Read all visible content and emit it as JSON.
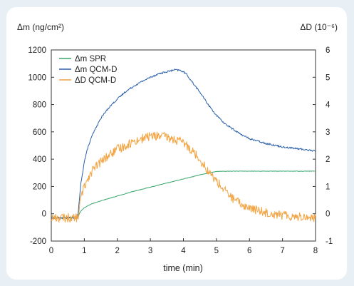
{
  "chart_data": {
    "type": "line",
    "title": "",
    "xlabel": "time (min)",
    "ylabel_left": "Δm (ng/cm²)",
    "ylabel_right": "ΔD (10⁻⁶)",
    "x_ticks": [
      "0",
      "1",
      "2",
      "3",
      "4",
      "5",
      "6",
      "7",
      "8"
    ],
    "y_left_ticks": [
      "1200",
      "1000",
      "800",
      "600",
      "400",
      "200",
      "0",
      "-200"
    ],
    "y_right_ticks": [
      "6",
      "5",
      "4",
      "3",
      "2",
      "1",
      "0",
      "-1"
    ],
    "xlim": [
      0,
      8
    ],
    "ylim_left": [
      -200,
      1200
    ],
    "ylim_right": [
      -1,
      6
    ],
    "grid": false,
    "legend_position": "top-left",
    "series": [
      {
        "name": "Δm SPR",
        "axis": "left",
        "color": "#3aa66b",
        "x": [
          0,
          0.8,
          0.85,
          0.9,
          1.0,
          1.2,
          1.5,
          2.0,
          2.5,
          3.0,
          3.5,
          4.0,
          4.5,
          4.8,
          5.0,
          5.5,
          6.0,
          7.0,
          8.0
        ],
        "y": [
          -30,
          -30,
          0,
          20,
          45,
          70,
          95,
          130,
          165,
          195,
          225,
          255,
          285,
          300,
          310,
          312,
          312,
          312,
          312
        ]
      },
      {
        "name": "Δm QCM-D",
        "axis": "left",
        "color": "#2a5fa8",
        "x": [
          0,
          0.8,
          0.85,
          0.9,
          1.0,
          1.1,
          1.25,
          1.5,
          1.75,
          2.0,
          2.25,
          2.5,
          2.75,
          3.0,
          3.25,
          3.5,
          3.75,
          3.9,
          4.0,
          4.1,
          4.25,
          4.5,
          4.75,
          5.0,
          5.25,
          5.5,
          5.75,
          6.0,
          6.5,
          7.0,
          7.5,
          8.0
        ],
        "y": [
          -30,
          -30,
          100,
          230,
          380,
          480,
          580,
          700,
          780,
          840,
          895,
          935,
          970,
          1000,
          1025,
          1040,
          1055,
          1050,
          1040,
          1020,
          970,
          890,
          800,
          720,
          660,
          620,
          580,
          550,
          515,
          490,
          475,
          460
        ]
      },
      {
        "name": "ΔD QCM-D",
        "axis": "right",
        "color": "#f2a443",
        "x": [
          0,
          0.8,
          0.85,
          0.9,
          1.0,
          1.1,
          1.25,
          1.5,
          1.75,
          2.0,
          2.25,
          2.5,
          2.75,
          3.0,
          3.25,
          3.5,
          3.75,
          4.0,
          4.25,
          4.5,
          4.75,
          5.0,
          5.25,
          5.5,
          5.75,
          6.0,
          6.5,
          7.0,
          7.5,
          8.0
        ],
        "y": [
          -0.15,
          -0.15,
          0.2,
          0.6,
          1.0,
          1.3,
          1.6,
          1.9,
          2.15,
          2.35,
          2.5,
          2.65,
          2.75,
          2.85,
          2.85,
          2.8,
          2.7,
          2.6,
          2.35,
          2.0,
          1.55,
          1.2,
          0.85,
          0.55,
          0.35,
          0.2,
          0.05,
          -0.05,
          -0.1,
          -0.15
        ]
      }
    ]
  }
}
